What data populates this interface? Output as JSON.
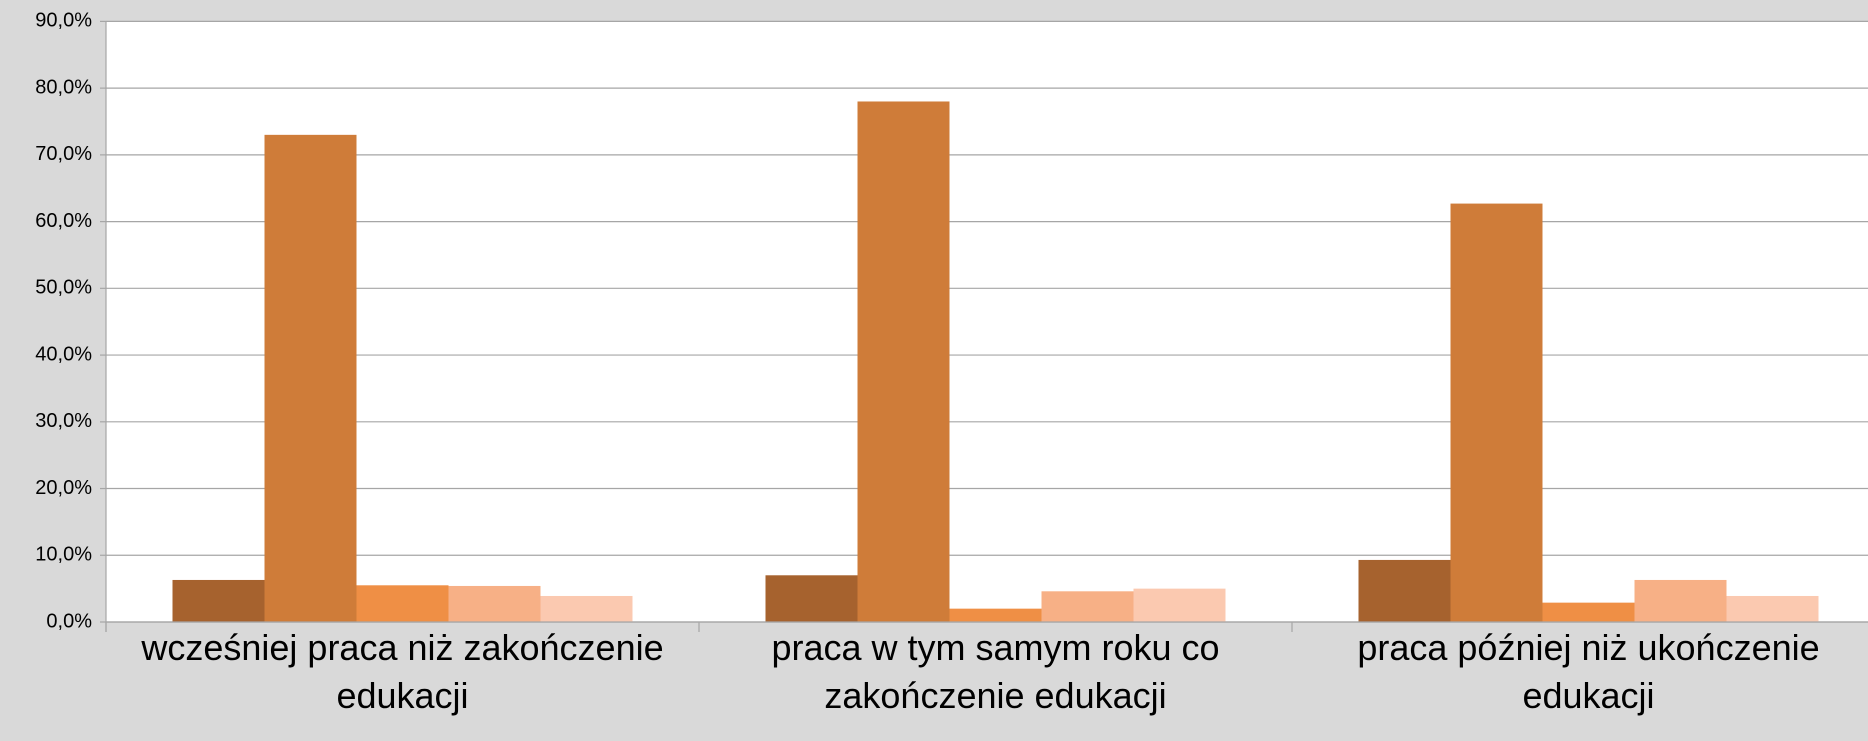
{
  "chart_data": {
    "type": "bar",
    "categories": [
      "wcześniej praca niż zakończenie edukacji",
      "praca w tym samym roku co zakończenie edukacji",
      "praca później niż ukończenie edukacji"
    ],
    "series": [
      {
        "color": "#a6622e",
        "values": [
          6.3,
          7.0,
          9.3
        ]
      },
      {
        "color": "#cf7c39",
        "values": [
          73.0,
          78.0,
          62.7
        ]
      },
      {
        "color": "#ef8f45",
        "values": [
          5.5,
          2.0,
          2.9
        ]
      },
      {
        "color": "#f7b086",
        "values": [
          5.4,
          4.6,
          6.3
        ]
      },
      {
        "color": "#fbc9b0",
        "values": [
          3.9,
          5.0,
          3.9
        ]
      }
    ],
    "ylim": [
      0,
      90
    ],
    "yticks": [
      {
        "value": 0,
        "label": "0,0%"
      },
      {
        "value": 10,
        "label": "10,0%"
      },
      {
        "value": 20,
        "label": "20,0%"
      },
      {
        "value": 30,
        "label": "30,0%"
      },
      {
        "value": 40,
        "label": "40,0%"
      },
      {
        "value": 50,
        "label": "50,0%"
      },
      {
        "value": 60,
        "label": "60,0%"
      },
      {
        "value": 70,
        "label": "70,0%"
      },
      {
        "value": 80,
        "label": "80,0%"
      },
      {
        "value": 90,
        "label": "90,0%"
      }
    ],
    "grid": true
  }
}
